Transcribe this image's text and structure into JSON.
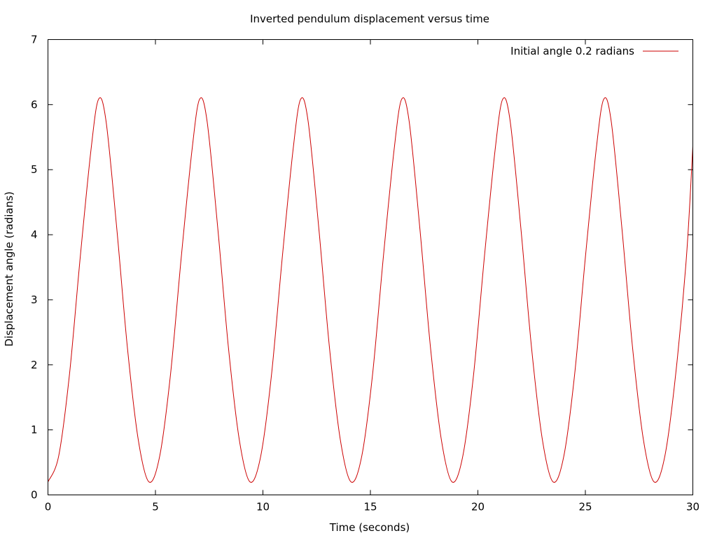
{
  "chart_data": {
    "type": "line",
    "title": "Inverted pendulum displacement versus time",
    "xlabel": "Time (seconds)",
    "ylabel": "Displacement angle (radians)",
    "xlim": [
      0,
      30
    ],
    "ylim": [
      0,
      7
    ],
    "x_ticks": [
      0,
      5,
      10,
      15,
      20,
      25,
      30
    ],
    "y_ticks": [
      0,
      1,
      2,
      3,
      4,
      5,
      6,
      7
    ],
    "x_tick_labels": [
      "0",
      "5",
      "10",
      "15",
      "20",
      "25",
      "30"
    ],
    "y_tick_labels": [
      "0",
      "1",
      "2",
      "3",
      "4",
      "5",
      "6",
      "7"
    ],
    "grid": false,
    "legend_position": "top-right",
    "series": [
      {
        "name": "Initial angle 0.2 radians",
        "color": "#cc0000",
        "x": [
          0,
          0.5,
          1.0,
          1.5,
          2.0,
          2.35,
          2.7,
          3.2,
          3.7,
          4.2,
          4.7,
          5.2,
          5.7,
          6.2,
          6.7,
          7.05,
          7.4,
          7.9,
          8.4,
          8.9,
          9.4,
          9.9,
          10.4,
          10.9,
          11.4,
          11.75,
          12.1,
          12.6,
          13.1,
          13.6,
          14.1,
          14.6,
          15.1,
          15.6,
          16.1,
          16.45,
          16.8,
          17.3,
          17.8,
          18.3,
          18.8,
          19.3,
          19.8,
          20.3,
          20.8,
          21.15,
          21.5,
          22.0,
          22.5,
          23.0,
          23.5,
          24.0,
          24.5,
          25.0,
          25.5,
          25.85,
          26.2,
          26.7,
          27.2,
          27.7,
          28.2,
          28.7,
          29.2,
          29.7,
          30.0
        ],
        "y": [
          0.2,
          0.6,
          1.85,
          3.65,
          5.3,
          6.08,
          5.75,
          4.1,
          2.25,
          0.85,
          0.2,
          0.6,
          1.85,
          3.65,
          5.3,
          6.08,
          5.75,
          4.1,
          2.25,
          0.85,
          0.2,
          0.6,
          1.85,
          3.65,
          5.3,
          6.08,
          5.75,
          4.1,
          2.25,
          0.85,
          0.2,
          0.6,
          1.85,
          3.65,
          5.3,
          6.08,
          5.75,
          4.1,
          2.25,
          0.85,
          0.2,
          0.6,
          1.85,
          3.65,
          5.3,
          6.08,
          5.75,
          4.1,
          2.25,
          0.85,
          0.2,
          0.6,
          1.85,
          3.65,
          5.3,
          6.08,
          5.75,
          4.1,
          2.25,
          0.85,
          0.2,
          0.6,
          1.85,
          3.65,
          5.36
        ]
      }
    ]
  }
}
